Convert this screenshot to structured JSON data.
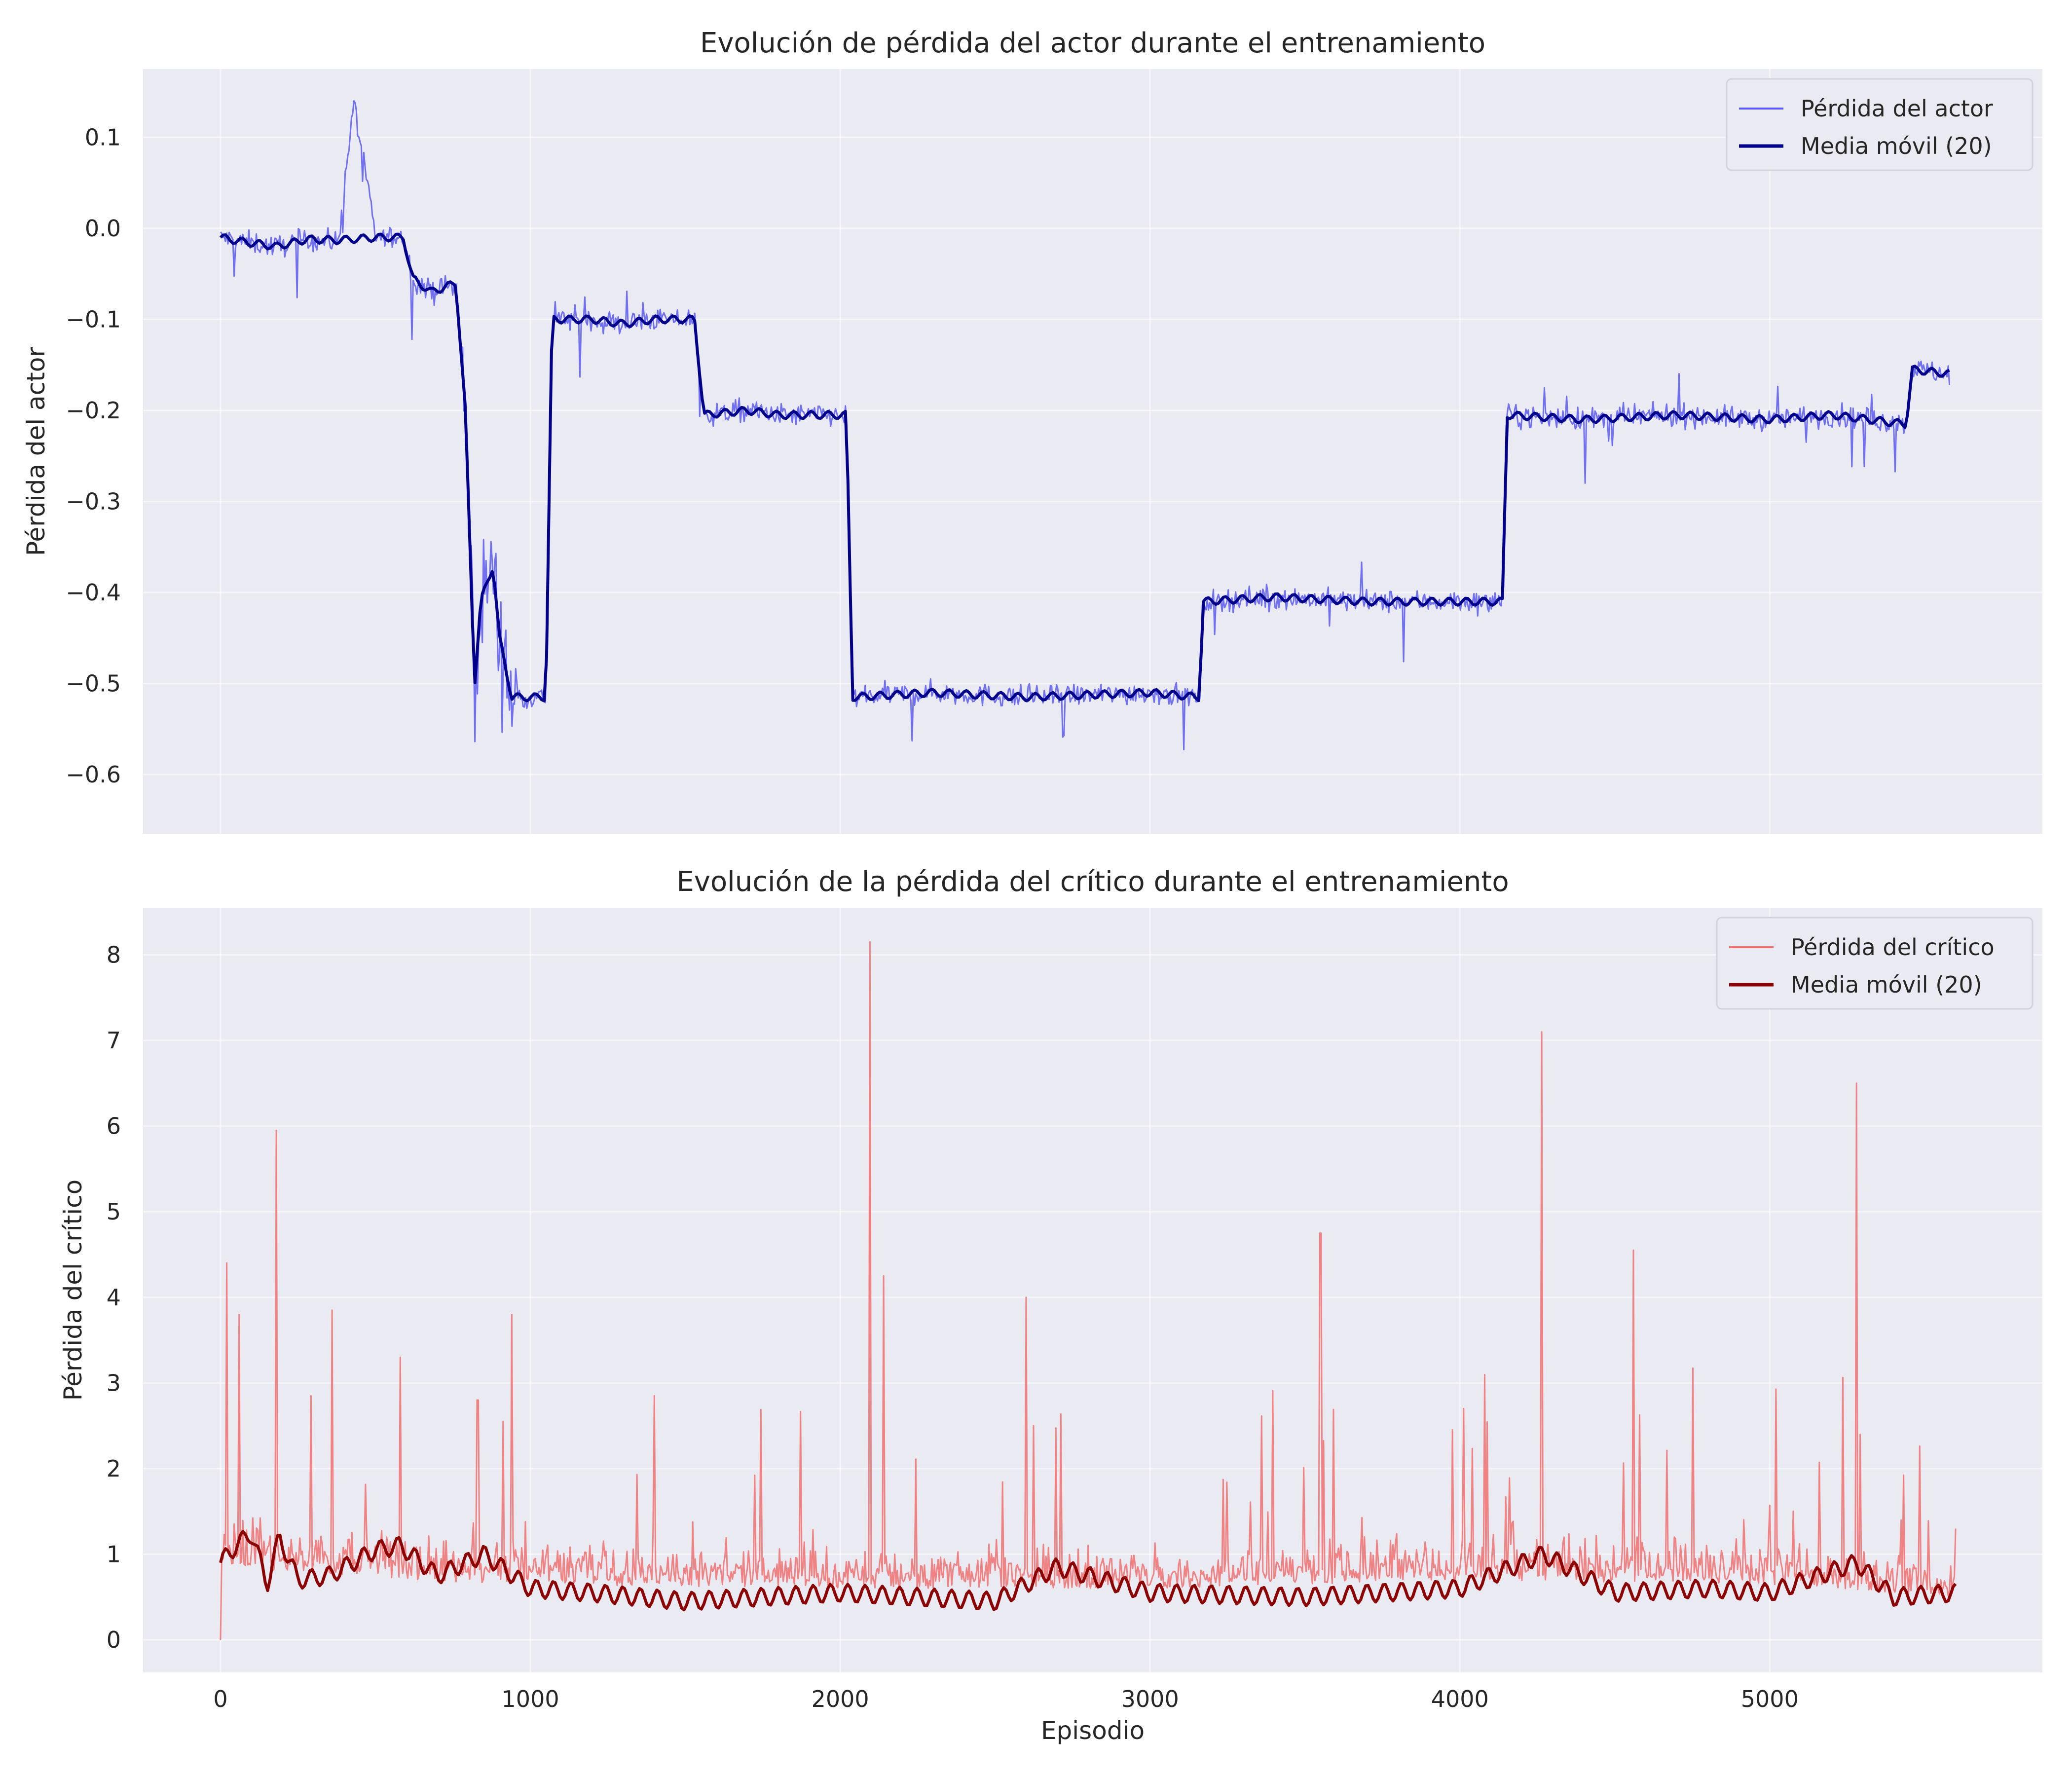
{
  "chart_data": [
    {
      "type": "line",
      "title": "Evolución de pérdida del actor durante el entrenamiento",
      "xlabel": "",
      "ylabel": "Pérdida del actor",
      "xlim": [
        -250,
        5880
      ],
      "ylim": [
        -0.665,
        0.175
      ],
      "xticks": [
        0,
        1000,
        2000,
        3000,
        4000,
        5000
      ],
      "yticks": [
        0.1,
        0.0,
        -0.1,
        -0.2,
        -0.3,
        -0.4,
        -0.5,
        -0.6
      ],
      "ytick_labels": [
        "0.1",
        "0.0",
        "−0.1",
        "−0.2",
        "−0.3",
        "−0.4",
        "−0.5",
        "−0.6"
      ],
      "grid": true,
      "legend_position": "top-right",
      "series": [
        {
          "name": "Pérdida del actor",
          "color": "#5a5af0",
          "kind": "raw",
          "x": [
            0,
            80,
            180,
            280,
            380,
            430,
            500,
            590,
            620,
            680,
            760,
            790,
            820,
            840,
            880,
            900,
            940,
            960,
            1050,
            1070,
            1200,
            1300,
            1400,
            1530,
            1560,
            1700,
            1800,
            2020,
            2040,
            2300,
            2600,
            3000,
            3160,
            3170,
            3400,
            3700,
            4000,
            4140,
            4150,
            4400,
            4700,
            5000,
            5200,
            5440,
            5460,
            5580
          ],
          "y": [
            -0.01,
            -0.015,
            -0.02,
            -0.012,
            -0.015,
            0.14,
            -0.01,
            -0.01,
            -0.055,
            -0.07,
            -0.06,
            -0.2,
            -0.5,
            -0.41,
            -0.37,
            -0.45,
            -0.515,
            -0.515,
            -0.515,
            -0.1,
            -0.1,
            -0.105,
            -0.1,
            -0.1,
            -0.205,
            -0.2,
            -0.205,
            -0.205,
            -0.515,
            -0.51,
            -0.515,
            -0.51,
            -0.515,
            -0.41,
            -0.405,
            -0.41,
            -0.41,
            -0.41,
            -0.205,
            -0.21,
            -0.205,
            -0.21,
            -0.205,
            -0.215,
            -0.155,
            -0.16
          ]
        },
        {
          "name": "Media móvil (20)",
          "color": "#00008b",
          "kind": "smooth",
          "x": [
            0,
            80,
            180,
            280,
            380,
            500,
            590,
            620,
            680,
            760,
            790,
            820,
            840,
            880,
            900,
            940,
            960,
            1050,
            1070,
            1200,
            1300,
            1400,
            1530,
            1560,
            1700,
            1800,
            2020,
            2040,
            2300,
            2600,
            3000,
            3160,
            3170,
            3400,
            3700,
            4000,
            4140,
            4150,
            4400,
            4700,
            5000,
            5200,
            5440,
            5460,
            5580
          ],
          "y": [
            -0.01,
            -0.015,
            -0.02,
            -0.012,
            -0.013,
            -0.01,
            -0.01,
            -0.055,
            -0.07,
            -0.06,
            -0.2,
            -0.5,
            -0.41,
            -0.37,
            -0.45,
            -0.515,
            -0.515,
            -0.515,
            -0.1,
            -0.1,
            -0.105,
            -0.1,
            -0.1,
            -0.205,
            -0.2,
            -0.205,
            -0.205,
            -0.515,
            -0.51,
            -0.515,
            -0.51,
            -0.515,
            -0.41,
            -0.405,
            -0.41,
            -0.41,
            -0.41,
            -0.205,
            -0.21,
            -0.205,
            -0.21,
            -0.205,
            -0.215,
            -0.155,
            -0.16
          ]
        }
      ]
    },
    {
      "type": "line",
      "title": "Evolución de la pérdida del crítico durante el entrenamiento",
      "xlabel": "Episodio",
      "ylabel": "Pérdida del crítico",
      "xlim": [
        -250,
        5880
      ],
      "ylim": [
        -0.38,
        8.55
      ],
      "xticks": [
        0,
        1000,
        2000,
        3000,
        4000,
        5000
      ],
      "yticks": [
        0,
        1,
        2,
        3,
        4,
        5,
        6,
        7,
        8
      ],
      "grid": true,
      "legend_position": "top-right",
      "series": [
        {
          "name": "Pérdida del crítico",
          "color": "#f07070",
          "kind": "raw",
          "x": [
            0,
            20,
            60,
            180,
            360,
            580,
            830,
            940,
            1400,
            2095,
            2140,
            2600,
            3550,
            4265,
            4560,
            5280,
            5600
          ],
          "y": [
            0,
            4.4,
            3.8,
            5.95,
            3.85,
            3.3,
            2.8,
            3.8,
            2.85,
            8.15,
            4.25,
            4.0,
            4.75,
            7.1,
            4.55,
            6.5,
            1.3
          ]
        },
        {
          "name": "Media móvil (20)",
          "color": "#8b0000",
          "kind": "smooth",
          "x": [
            0,
            50,
            100,
            150,
            190,
            250,
            350,
            500,
            580,
            700,
            850,
            1000,
            1200,
            1500,
            2000,
            2500,
            2700,
            3000,
            3500,
            4000,
            4270,
            4500,
            4800,
            5000,
            5280,
            5400,
            5600
          ],
          "y": [
            0.9,
            1.1,
            1.25,
            0.65,
            1.2,
            0.7,
            0.75,
            1.05,
            1.1,
            0.75,
            1.0,
            0.6,
            0.55,
            0.45,
            0.55,
            0.45,
            0.85,
            0.55,
            0.5,
            0.6,
            1.0,
            0.55,
            0.6,
            0.55,
            0.9,
            0.5,
            0.55
          ]
        }
      ]
    }
  ]
}
